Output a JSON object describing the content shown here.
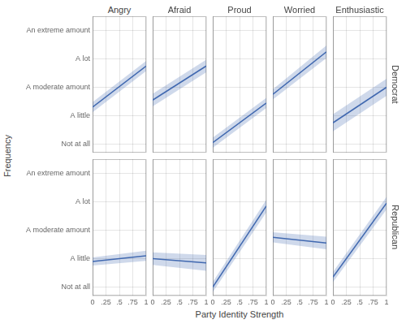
{
  "chart_data": [
    {
      "type": "line",
      "title": "Angry",
      "ylabel": "Frequency",
      "tick_labels": "y",
      "x": [
        0,
        1
      ],
      "values": [
        2.3,
        3.75
      ],
      "ci": [
        0.18,
        0.18
      ],
      "color": "#4169B0",
      "xlim": [
        0,
        1
      ],
      "xticks": [
        0,
        {
          "value": 0.25,
          "label": ".25"
        },
        {
          "value": 0.5,
          "label": ".5"
        },
        {
          "value": 0.75,
          "label": ".75"
        },
        1
      ],
      "ylim": [
        0.7,
        5.5
      ],
      "yticks": [
        {
          "value": 1,
          "label": "Not at all"
        },
        {
          "value": 2,
          "label": "A little"
        },
        {
          "value": 3,
          "label": "A moderate amount"
        },
        {
          "value": 4,
          "label": "A lot"
        },
        {
          "value": 5,
          "label": "An extreme amount"
        }
      ],
      "grid": true
    },
    {
      "type": "line",
      "title": "Afraid",
      "tick_labels": false,
      "x": [
        0,
        1
      ],
      "values": [
        2.55,
        3.75
      ],
      "ci": [
        0.22,
        0.22
      ],
      "color": "#4169B0",
      "xlim": [
        0,
        1
      ],
      "xticks": [
        0,
        {
          "value": 0.25,
          "label": ".25"
        },
        {
          "value": 0.5,
          "label": ".5"
        },
        {
          "value": 0.75,
          "label": ".75"
        },
        1
      ],
      "ylim": [
        0.7,
        5.5
      ],
      "yticks": [
        {
          "value": 1,
          "label": "Not at all"
        },
        {
          "value": 2,
          "label": "A little"
        },
        {
          "value": 3,
          "label": "A moderate amount"
        },
        {
          "value": 4,
          "label": "A lot"
        },
        {
          "value": 5,
          "label": "An extreme amount"
        }
      ],
      "grid": true
    },
    {
      "type": "line",
      "title": "Proud",
      "tick_labels": false,
      "x": [
        0,
        1
      ],
      "values": [
        1.05,
        2.45
      ],
      "ci": [
        0.18,
        0.18
      ],
      "color": "#4169B0",
      "xlim": [
        0,
        1
      ],
      "xticks": [
        0,
        {
          "value": 0.25,
          "label": ".25"
        },
        {
          "value": 0.5,
          "label": ".5"
        },
        {
          "value": 0.75,
          "label": ".75"
        },
        1
      ],
      "ylim": [
        0.7,
        5.5
      ],
      "yticks": [
        {
          "value": 1,
          "label": "Not at all"
        },
        {
          "value": 2,
          "label": "A little"
        },
        {
          "value": 3,
          "label": "A moderate amount"
        },
        {
          "value": 4,
          "label": "A lot"
        },
        {
          "value": 5,
          "label": "An extreme amount"
        }
      ],
      "grid": true
    },
    {
      "type": "line",
      "title": "Worried",
      "tick_labels": false,
      "x": [
        0,
        1
      ],
      "values": [
        2.75,
        4.25
      ],
      "ci": [
        0.18,
        0.22
      ],
      "color": "#4169B0",
      "xlim": [
        0,
        1
      ],
      "xticks": [
        0,
        {
          "value": 0.25,
          "label": ".25"
        },
        {
          "value": 0.5,
          "label": ".5"
        },
        {
          "value": 0.75,
          "label": ".75"
        },
        1
      ],
      "ylim": [
        0.7,
        5.5
      ],
      "yticks": [
        {
          "value": 1,
          "label": "Not at all"
        },
        {
          "value": 2,
          "label": "A little"
        },
        {
          "value": 3,
          "label": "A moderate amount"
        },
        {
          "value": 4,
          "label": "A lot"
        },
        {
          "value": 5,
          "label": "An extreme amount"
        }
      ],
      "grid": true
    },
    {
      "type": "line",
      "title": "Enthusiastic",
      "annotations": [
        {
          "text": "Democrat"
        }
      ],
      "tick_labels": false,
      "x": [
        0,
        1
      ],
      "values": [
        1.75,
        3.0
      ],
      "ci": [
        0.3,
        0.3
      ],
      "color": "#4169B0",
      "xlim": [
        0,
        1
      ],
      "xticks": [
        0,
        {
          "value": 0.25,
          "label": ".25"
        },
        {
          "value": 0.5,
          "label": ".5"
        },
        {
          "value": 0.75,
          "label": ".75"
        },
        1
      ],
      "ylim": [
        0.7,
        5.5
      ],
      "yticks": [
        {
          "value": 1,
          "label": "Not at all"
        },
        {
          "value": 2,
          "label": "A little"
        },
        {
          "value": 3,
          "label": "A moderate amount"
        },
        {
          "value": 4,
          "label": "A lot"
        },
        {
          "value": 5,
          "label": "An extreme amount"
        }
      ],
      "grid": true
    },
    {
      "type": "line",
      "x": [
        0,
        1
      ],
      "values": [
        1.9,
        2.1
      ],
      "ci": [
        0.14,
        0.18
      ],
      "color": "#4169B0",
      "xlim": [
        0,
        1
      ],
      "xticks": [
        0,
        {
          "value": 0.25,
          "label": ".25"
        },
        {
          "value": 0.5,
          "label": ".5"
        },
        {
          "value": 0.75,
          "label": ".75"
        },
        1
      ],
      "ylim": [
        0.7,
        5.5
      ],
      "yticks": [
        {
          "value": 1,
          "label": "Not at all"
        },
        {
          "value": 2,
          "label": "A little"
        },
        {
          "value": 3,
          "label": "A moderate amount"
        },
        {
          "value": 4,
          "label": "A lot"
        },
        {
          "value": 5,
          "label": "An extreme amount"
        }
      ],
      "grid": true
    },
    {
      "type": "line",
      "tick_labels": "x",
      "x": [
        0,
        1
      ],
      "values": [
        2.0,
        1.85
      ],
      "ci": [
        0.22,
        0.28
      ],
      "color": "#4169B0",
      "xlim": [
        0,
        1
      ],
      "xticks": [
        0,
        {
          "value": 0.25,
          "label": ".25"
        },
        {
          "value": 0.5,
          "label": ".5"
        },
        {
          "value": 0.75,
          "label": ".75"
        },
        1
      ],
      "ylim": [
        0.7,
        5.5
      ],
      "yticks": [
        {
          "value": 1,
          "label": "Not at all"
        },
        {
          "value": 2,
          "label": "A little"
        },
        {
          "value": 3,
          "label": "A moderate amount"
        },
        {
          "value": 4,
          "label": "A lot"
        },
        {
          "value": 5,
          "label": "An extreme amount"
        }
      ],
      "grid": true
    },
    {
      "type": "line",
      "xlabel": "Party Identity Strength",
      "tick_labels": "x",
      "x": [
        0,
        1
      ],
      "values": [
        1.0,
        3.85
      ],
      "ci": [
        0.18,
        0.22
      ],
      "color": "#4169B0",
      "xlim": [
        0,
        1
      ],
      "xticks": [
        0,
        {
          "value": 0.25,
          "label": ".25"
        },
        {
          "value": 0.5,
          "label": ".5"
        },
        {
          "value": 0.75,
          "label": ".75"
        },
        1
      ],
      "ylim": [
        0.7,
        5.5
      ],
      "yticks": [
        {
          "value": 1,
          "label": "Not at all"
        },
        {
          "value": 2,
          "label": "A little"
        },
        {
          "value": 3,
          "label": "A moderate amount"
        },
        {
          "value": 4,
          "label": "A lot"
        },
        {
          "value": 5,
          "label": "An extreme amount"
        }
      ],
      "grid": true
    },
    {
      "type": "line",
      "tick_labels": "x",
      "x": [
        0,
        1
      ],
      "values": [
        2.75,
        2.55
      ],
      "ci": [
        0.18,
        0.22
      ],
      "color": "#4169B0",
      "xlim": [
        0,
        1
      ],
      "xticks": [
        0,
        {
          "value": 0.25,
          "label": ".25"
        },
        {
          "value": 0.5,
          "label": ".5"
        },
        {
          "value": 0.75,
          "label": ".75"
        },
        1
      ],
      "ylim": [
        0.7,
        5.5
      ],
      "yticks": [
        {
          "value": 1,
          "label": "Not at all"
        },
        {
          "value": 2,
          "label": "A little"
        },
        {
          "value": 3,
          "label": "A moderate amount"
        },
        {
          "value": 4,
          "label": "A lot"
        },
        {
          "value": 5,
          "label": "An extreme amount"
        }
      ],
      "grid": true
    },
    {
      "type": "line",
      "annotations": [
        {
          "text": "Republican"
        }
      ],
      "tick_labels": "x",
      "x": [
        0,
        1
      ],
      "values": [
        1.35,
        3.95
      ],
      "ci": [
        0.18,
        0.22
      ],
      "color": "#4169B0",
      "xlim": [
        0,
        1
      ],
      "xticks": [
        0,
        {
          "value": 0.25,
          "label": ".25"
        },
        {
          "value": 0.5,
          "label": ".5"
        },
        {
          "value": 0.75,
          "label": ".75"
        },
        1
      ],
      "ylim": [
        0.7,
        5.5
      ],
      "yticks": [
        {
          "value": 1,
          "label": "Not at all"
        },
        {
          "value": 2,
          "label": "A little"
        },
        {
          "value": 3,
          "label": "A moderate amount"
        },
        {
          "value": 4,
          "label": "A lot"
        },
        {
          "value": 5,
          "label": "An extreme amount"
        }
      ],
      "grid": true
    }
  ]
}
